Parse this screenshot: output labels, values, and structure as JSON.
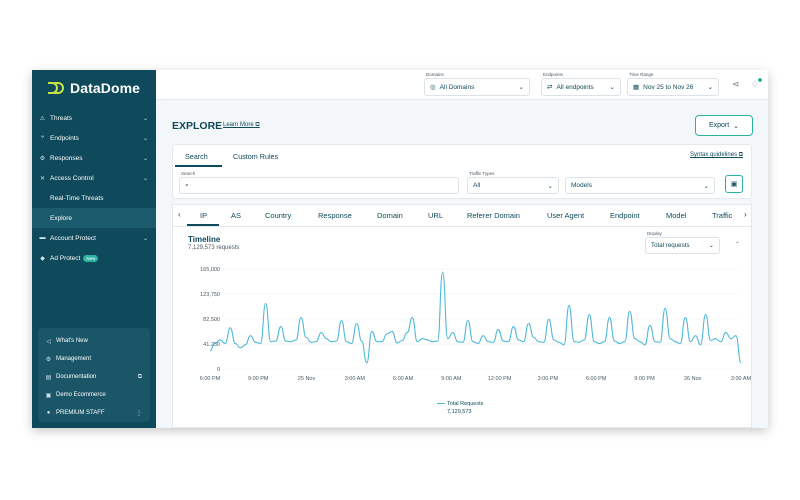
{
  "brand": {
    "name": "DataDome"
  },
  "colors": {
    "sidebar": "#0f4a5c",
    "accent": "#2bb3a0",
    "logo": "#c7e344",
    "line": "#4fb8d8"
  },
  "sidebar": {
    "items": [
      {
        "label": "Threats",
        "icon": "warning-icon",
        "chevron": true
      },
      {
        "label": "Endpoints",
        "icon": "endpoints-icon",
        "chevron": true
      },
      {
        "label": "Responses",
        "icon": "gear-icon",
        "chevron": true
      },
      {
        "label": "Access Control",
        "icon": "tools-icon",
        "chevron": true
      },
      {
        "label": "Real-Time Threats",
        "icon": "",
        "chevron": false
      },
      {
        "label": "Explore",
        "icon": "",
        "chevron": false,
        "active": true
      },
      {
        "label": "Account Protect",
        "icon": "account-icon",
        "chevron": true
      },
      {
        "label": "Ad Protect",
        "icon": "ad-icon",
        "chevron": false,
        "badge": "New"
      }
    ],
    "bottom": [
      {
        "label": "What's New",
        "icon": "megaphone-icon"
      },
      {
        "label": "Management",
        "icon": "gear-icon"
      },
      {
        "label": "Documentation",
        "icon": "document-icon"
      },
      {
        "label": "Demo Ecommerce",
        "icon": "store-icon"
      },
      {
        "label": "PREMIUM STAFF",
        "icon": "user-icon"
      }
    ]
  },
  "topbar": {
    "domains": {
      "label": "Domains",
      "value": "All Domains"
    },
    "endpoints": {
      "label": "Endpoints",
      "value": "All endpoints"
    },
    "time_range": {
      "label": "Time Range",
      "value": "Nov 25 to Nov 26"
    }
  },
  "page": {
    "title": "EXPLORE",
    "learn_more": "Learn More",
    "export_label": "Export"
  },
  "query": {
    "tabs": [
      "Search",
      "Custom Rules"
    ],
    "active_tab": "Search",
    "syntax_link": "Syntax guidelines",
    "search_label": "Search",
    "search_value": "",
    "traffic_label": "Traffic Types",
    "traffic_value": "All",
    "models_value": "Models"
  },
  "dimension_tabs": [
    "IP",
    "AS",
    "Country",
    "Response",
    "Domain",
    "URL",
    "Referer Domain",
    "User Agent",
    "Endpoint",
    "Model",
    "Traffic"
  ],
  "active_dimension": "IP",
  "timeline": {
    "title": "Timeline",
    "subtitle": "7,129,573 requests",
    "display_label": "Display",
    "display_value": "Total requests",
    "legend_name": "Total Requests",
    "legend_total": "7,129,573"
  },
  "chart_data": {
    "type": "line",
    "title": "Timeline",
    "xlabel": "",
    "ylabel": "",
    "y_ticks": [
      "165,000",
      "123,750",
      "82,500",
      "41,250",
      "0"
    ],
    "y_tick_values": [
      165000,
      123750,
      82500,
      41250,
      0
    ],
    "x_ticks": [
      "6:00 PM",
      "9:00 PM",
      "25 Nov",
      "3:00 AM",
      "6:00 AM",
      "9:00 AM",
      "12:00 PM",
      "3:00 PM",
      "6:00 PM",
      "9:00 PM",
      "26 Nov",
      "3:00 AM"
    ],
    "ylim": [
      0,
      165000
    ],
    "grid": true,
    "legend_position": "bottom-center",
    "series": [
      {
        "name": "Total Requests",
        "values": [
          30000,
          42000,
          48000,
          42000,
          68000,
          42000,
          35000,
          40000,
          55000,
          44000,
          42000,
          108000,
          45000,
          46000,
          70000,
          46000,
          45000,
          48000,
          85000,
          52000,
          44000,
          45000,
          60000,
          50000,
          45000,
          46000,
          80000,
          45000,
          42000,
          75000,
          46000,
          10000,
          62000,
          45000,
          45000,
          58000,
          62000,
          43000,
          47000,
          60000,
          85000,
          45000,
          50000,
          48000,
          45000,
          46000,
          160000,
          50000,
          60000,
          45000,
          44000,
          80000,
          45000,
          42000,
          55000,
          45000,
          44000,
          65000,
          46000,
          45000,
          70000,
          48000,
          45000,
          75000,
          52000,
          45000,
          44000,
          82000,
          48000,
          44000,
          40000,
          105000,
          45000,
          44000,
          48000,
          90000,
          45000,
          42000,
          45000,
          85000,
          46000,
          42000,
          45000,
          95000,
          50000,
          45000,
          40000,
          72000,
          45000,
          44000,
          100000,
          50000,
          45000,
          42000,
          85000,
          45000,
          55000,
          40000,
          90000,
          47000,
          50000,
          45000,
          60000,
          50000,
          55000,
          10000
        ]
      }
    ]
  }
}
